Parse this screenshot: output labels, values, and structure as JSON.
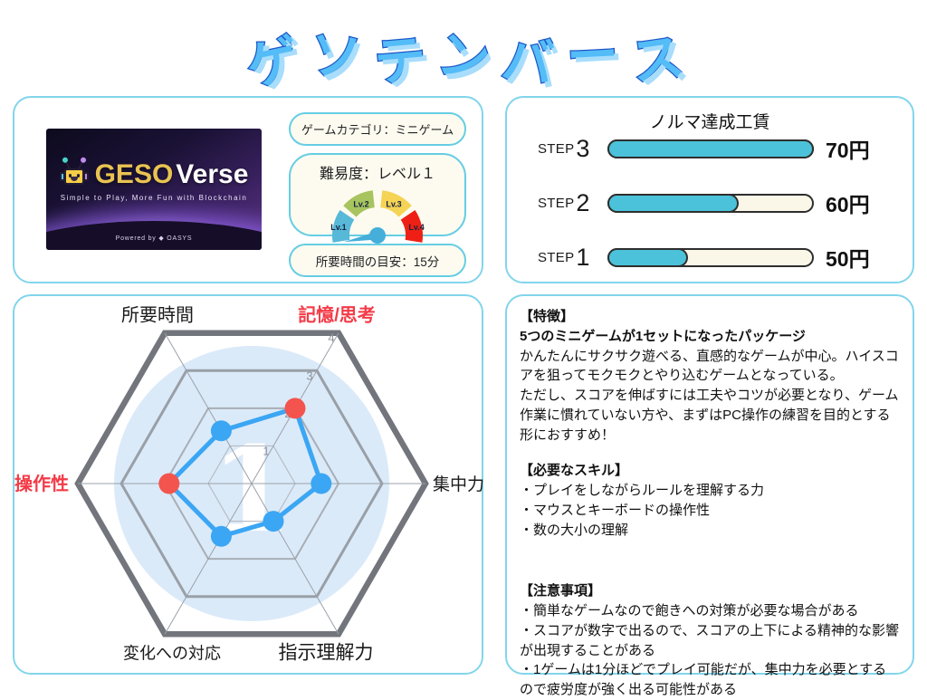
{
  "title": {
    "text": "ゲソテンバース"
  },
  "colors": {
    "panel_border": "#82D5EB",
    "title_fill": "#54BCF7",
    "title_outline": "#1D57C7",
    "title_shadow": "#A8DDFB",
    "bar_fill": "#4BC2D9",
    "bar_empty": "#FAF7E8"
  },
  "info_panel": {
    "logo": {
      "brand_geso": "GESO",
      "brand_verse": "Verse",
      "tagline": "Simple to Play, More Fun with Blockchain",
      "powered_by": "Powered by ◆ OASYS"
    },
    "category_pill": "ゲームカテゴリ：ミニゲーム",
    "difficulty": {
      "label": "難易度：レベル１",
      "segments": [
        {
          "label": "Lv.1",
          "color": "#57B8D8"
        },
        {
          "label": "Lv.2",
          "color": "#A7C45F"
        },
        {
          "label": "Lv.3",
          "color": "#F5D355"
        },
        {
          "label": "Lv.4",
          "color": "#EE2015"
        }
      ],
      "needle_angle_deg": 191,
      "needle_color": "#45AFD9"
    },
    "time_pill": "所要時間の目安：15分"
  },
  "wage_panel": {
    "title": "ノルマ達成工賃",
    "step_word": "STEP",
    "steps": [
      {
        "number": "3",
        "amount": "70円",
        "fill_percent": 100
      },
      {
        "number": "2",
        "amount": "60円",
        "fill_percent": 63
      },
      {
        "number": "1",
        "amount": "50円",
        "fill_percent": 38
      }
    ]
  },
  "chart_data": {
    "type": "radar",
    "max": 4,
    "rings": [
      1,
      2,
      3,
      4
    ],
    "tick_labels": [
      "1",
      "2",
      "3",
      "4"
    ],
    "axes": [
      {
        "label": "所要時間",
        "angle_deg": 120,
        "value": 1.4,
        "label_color": "#1a1a1a",
        "dot_color": "#3BA6F3",
        "bold": false
      },
      {
        "label": "記憶/思考",
        "angle_deg": 60,
        "value": 2.0,
        "label_color": "#F43B47",
        "dot_color": "#F4544E",
        "bold": true
      },
      {
        "label": "集中力",
        "angle_deg": 0,
        "value": 1.6,
        "label_color": "#1a1a1a",
        "dot_color": "#3BA6F3",
        "bold": false
      },
      {
        "label": "指示理解力",
        "angle_deg": 300,
        "value": 1.0,
        "label_color": "#1a1a1a",
        "dot_color": "#3BA6F3",
        "bold": false
      },
      {
        "label": "変化への対応",
        "angle_deg": 240,
        "value": 1.4,
        "label_color": "#1a1a1a",
        "dot_color": "#3BA6F3",
        "bold": false
      },
      {
        "label": "操作性",
        "angle_deg": 180,
        "value": 1.9,
        "label_color": "#F43B47",
        "dot_color": "#F4544E",
        "bold": true
      }
    ],
    "line_color": "#3BA6F3",
    "watermark": "1",
    "background_circle_color": "#DBEAF9",
    "legend_position": "none",
    "grid": true
  },
  "detail_panel": {
    "sections": [
      {
        "heading": "【特徴】",
        "bold_line": "5つのミニゲームが1セットになったパッケージ",
        "paragraphs": [
          "かんたんにサクサク遊べる、直感的なゲームが中心。ハイスコアを狙ってモクモクとやり込むゲームとなっている。",
          "ただし、スコアを伸ばすには工夫やコツが必要となり、ゲーム作業に慣れていない方や、まずはPC操作の練習を目的とする形におすすめ！"
        ],
        "bullets": []
      },
      {
        "heading": "【必要なスキル】",
        "bold_line": "",
        "paragraphs": [],
        "bullets": [
          "・プレイをしながらルールを理解する力",
          "・マウスとキーボードの操作性",
          "・数の大小の理解"
        ]
      },
      {
        "heading": "【注意事項】",
        "bold_line": "",
        "paragraphs": [],
        "bullets": [
          "・簡単なゲームなので飽きへの対策が必要な場合がある",
          "・スコアが数字で出るので、スコアの上下による精神的な影響が出現することがある",
          "・1ゲームは1分ほどでプレイ可能だが、集中力を必要とするので疲労度が強く出る可能性がある"
        ]
      }
    ]
  }
}
